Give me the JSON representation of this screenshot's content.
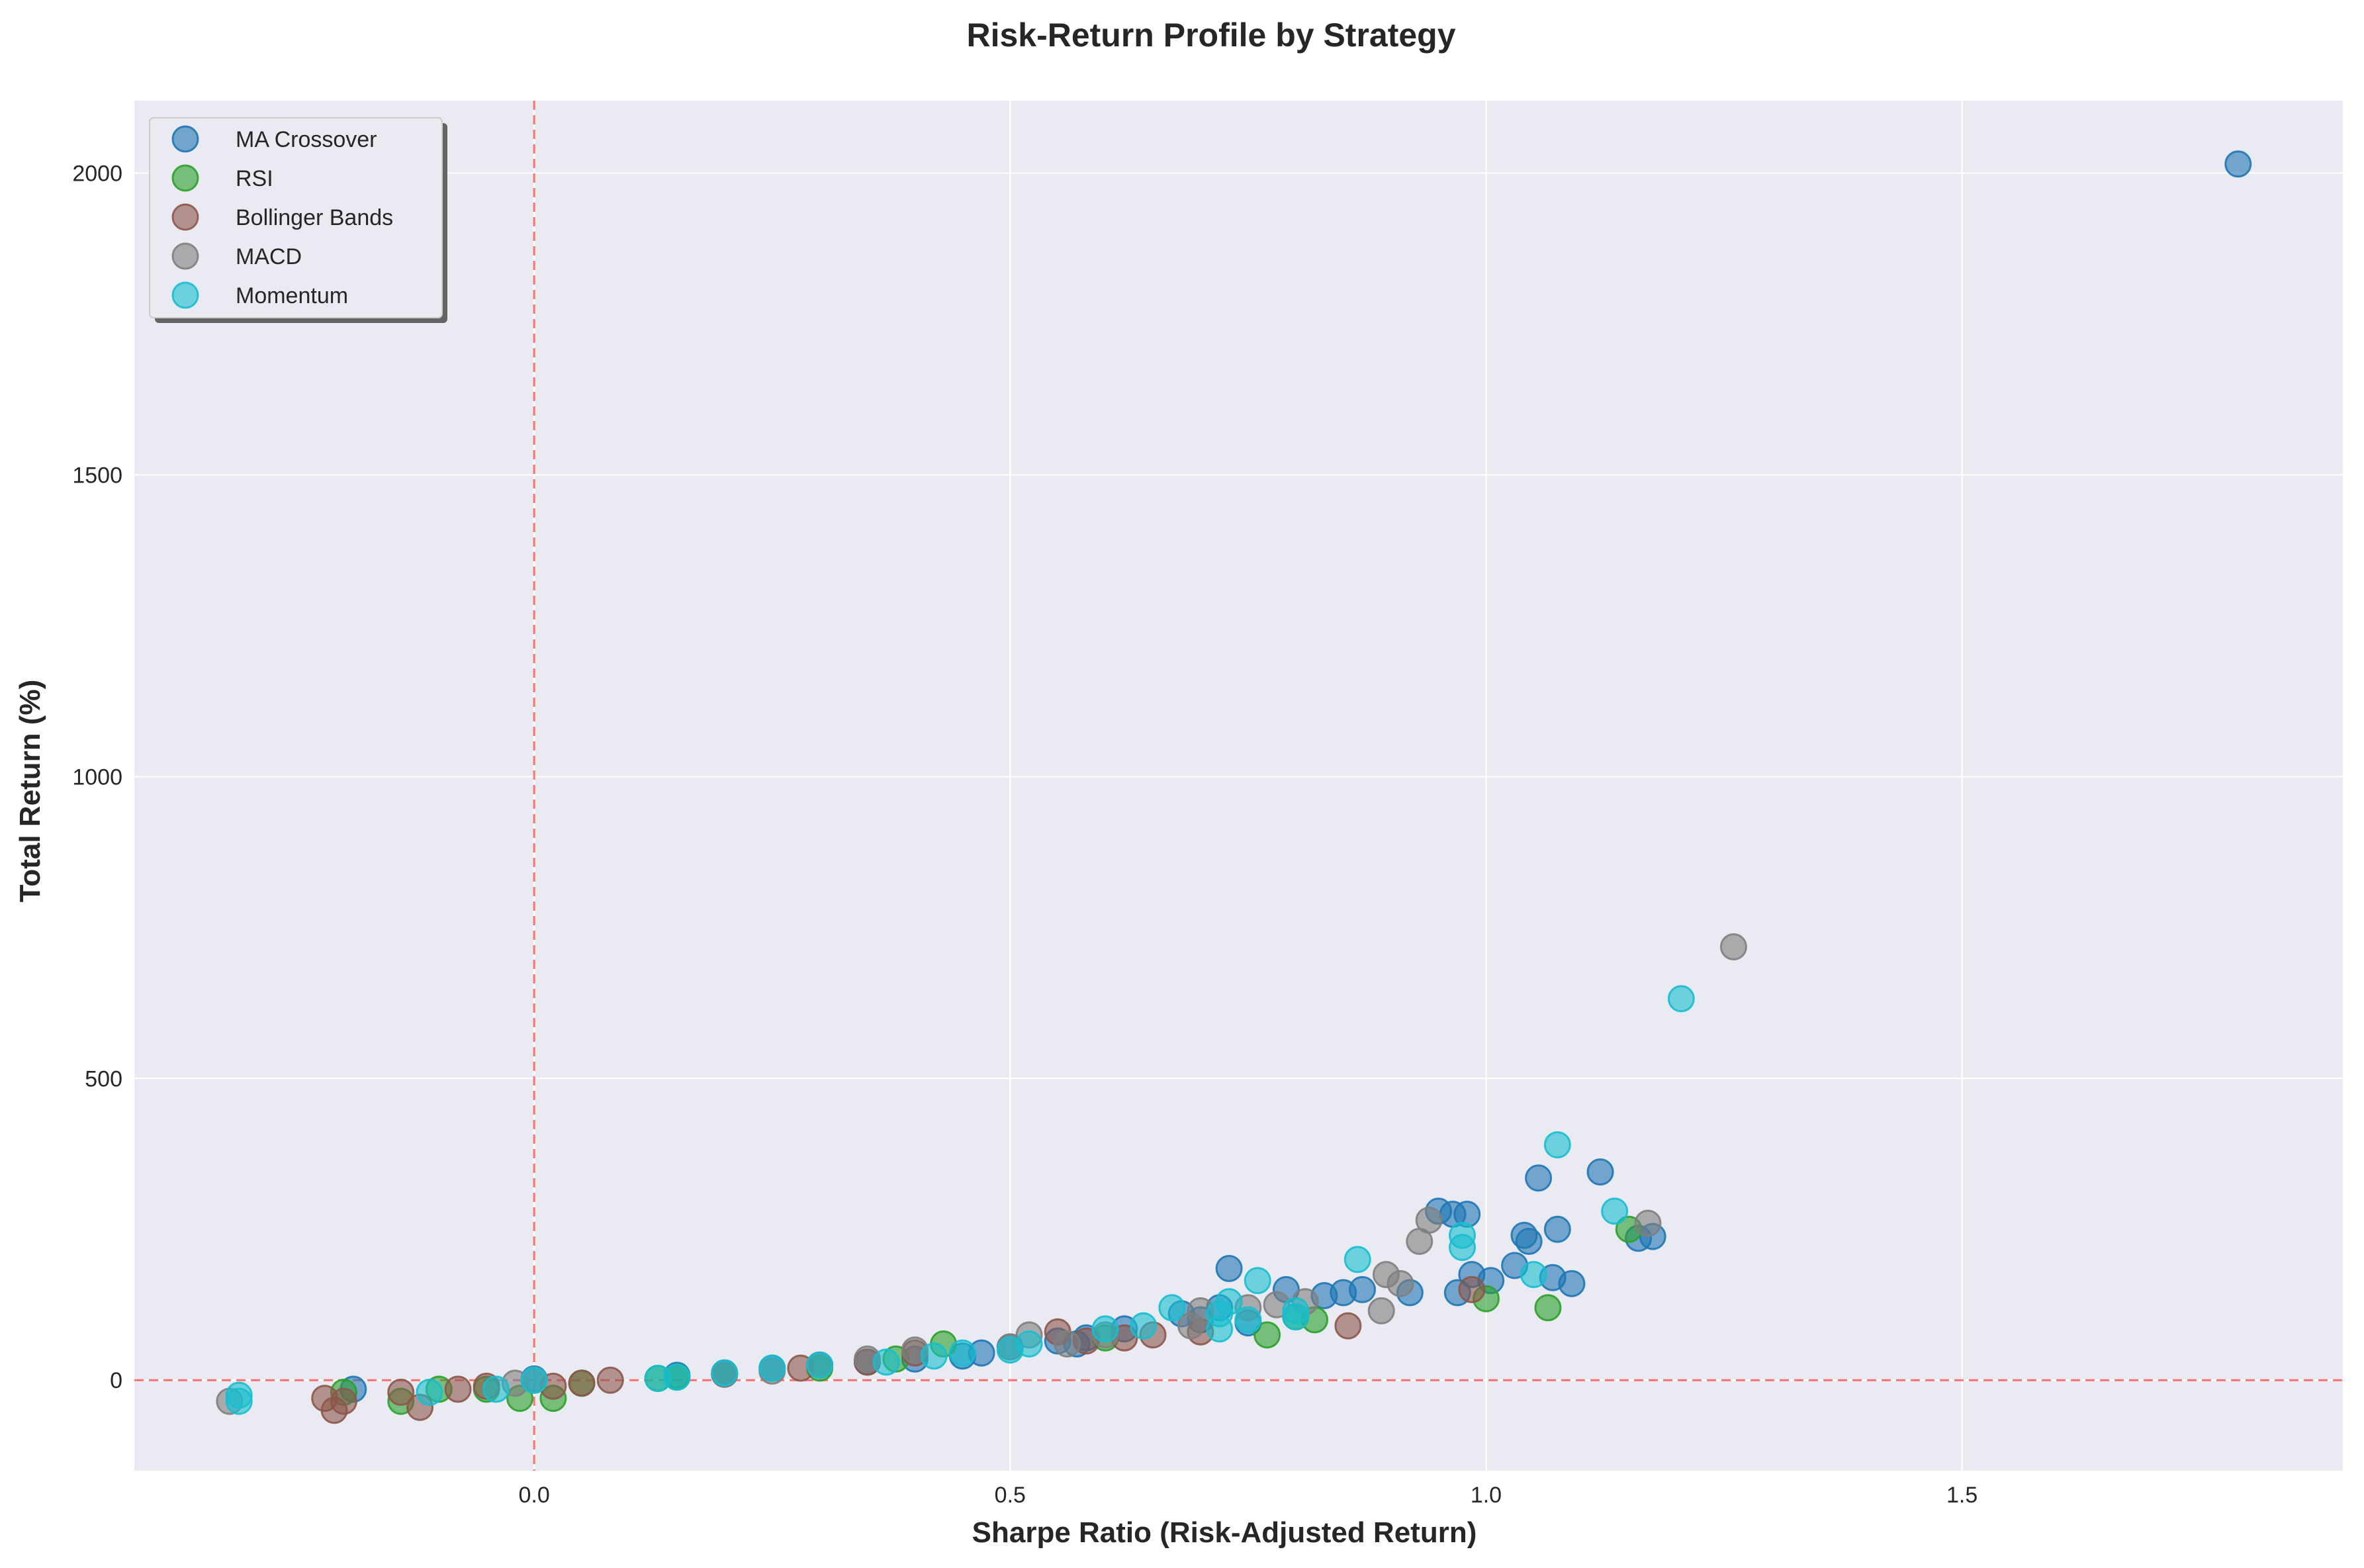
{
  "chart_data": {
    "type": "scatter",
    "title": "Risk-Return Profile by Strategy",
    "xlabel": "Sharpe Ratio (Risk-Adjusted Return)",
    "ylabel": "Total Return (%)",
    "xlim": [
      -0.42,
      1.9
    ],
    "ylim": [
      -150,
      2120
    ],
    "xticks": [
      0.0,
      0.5,
      1.0,
      1.5
    ],
    "xtick_labels": [
      "0.0",
      "0.5",
      "1.0",
      "1.5"
    ],
    "yticks": [
      0,
      500,
      1000,
      1500,
      2000
    ],
    "ytick_labels": [
      "0",
      "500",
      "1000",
      "1500",
      "2000"
    ],
    "grid": true,
    "reference_lines": {
      "x": 0,
      "y": 0,
      "color": "#ff0000",
      "style": "dashed"
    },
    "legend_position": "top-left",
    "series": [
      {
        "name": "MA Crossover",
        "color": "#1f77b4",
        "points": [
          [
            1.79,
            2015
          ],
          [
            1.12,
            345
          ],
          [
            1.055,
            335
          ],
          [
            1.075,
            250
          ],
          [
            1.04,
            240
          ],
          [
            1.045,
            230
          ],
          [
            0.95,
            280
          ],
          [
            0.965,
            275
          ],
          [
            0.98,
            275
          ],
          [
            1.175,
            238
          ],
          [
            1.16,
            235
          ],
          [
            1.03,
            190
          ],
          [
            0.73,
            185
          ],
          [
            1.005,
            165
          ],
          [
            0.985,
            175
          ],
          [
            1.07,
            170
          ],
          [
            1.09,
            160
          ],
          [
            0.79,
            150
          ],
          [
            0.85,
            145
          ],
          [
            0.87,
            150
          ],
          [
            0.92,
            145
          ],
          [
            0.97,
            145
          ],
          [
            0.83,
            140
          ],
          [
            0.72,
            120
          ],
          [
            0.68,
            110
          ],
          [
            0.7,
            100
          ],
          [
            0.75,
            95
          ],
          [
            0.62,
            85
          ],
          [
            0.58,
            70
          ],
          [
            0.57,
            60
          ],
          [
            0.55,
            65
          ],
          [
            0.5,
            55
          ],
          [
            0.47,
            45
          ],
          [
            0.45,
            40
          ],
          [
            0.4,
            35
          ],
          [
            0.35,
            30
          ],
          [
            0.3,
            25
          ],
          [
            0.25,
            20
          ],
          [
            0.2,
            12
          ],
          [
            0.15,
            8
          ],
          [
            0.0,
            2
          ],
          [
            -0.19,
            -15
          ]
        ]
      },
      {
        "name": "RSI",
        "color": "#2ca02c",
        "points": [
          [
            1.15,
            250
          ],
          [
            1.0,
            135
          ],
          [
            1.065,
            120
          ],
          [
            0.77,
            75
          ],
          [
            0.82,
            100
          ],
          [
            0.8,
            105
          ],
          [
            0.6,
            70
          ],
          [
            0.43,
            60
          ],
          [
            0.38,
            35
          ],
          [
            0.3,
            20
          ],
          [
            0.2,
            10
          ],
          [
            0.15,
            5
          ],
          [
            0.13,
            3
          ],
          [
            0.05,
            -5
          ],
          [
            0.02,
            -30
          ],
          [
            -0.015,
            -30
          ],
          [
            -0.05,
            -15
          ],
          [
            -0.1,
            -15
          ],
          [
            -0.14,
            -35
          ],
          [
            -0.2,
            -20
          ]
        ]
      },
      {
        "name": "Bollinger Bands",
        "color": "#8c564b",
        "points": [
          [
            0.985,
            150
          ],
          [
            0.855,
            90
          ],
          [
            0.7,
            80
          ],
          [
            0.65,
            75
          ],
          [
            0.62,
            70
          ],
          [
            0.58,
            65
          ],
          [
            0.55,
            80
          ],
          [
            0.4,
            45
          ],
          [
            0.35,
            30
          ],
          [
            0.28,
            20
          ],
          [
            0.2,
            10
          ],
          [
            0.08,
            0
          ],
          [
            0.05,
            -5
          ],
          [
            0.02,
            -10
          ],
          [
            -0.05,
            -10
          ],
          [
            -0.08,
            -15
          ],
          [
            -0.12,
            -45
          ],
          [
            -0.14,
            -20
          ],
          [
            -0.2,
            -35
          ],
          [
            -0.22,
            -30
          ],
          [
            -0.21,
            -50
          ]
        ]
      },
      {
        "name": "MACD",
        "color": "#7f7f7f",
        "points": [
          [
            1.26,
            718
          ],
          [
            1.17,
            260
          ],
          [
            0.94,
            265
          ],
          [
            0.93,
            230
          ],
          [
            0.895,
            175
          ],
          [
            0.91,
            160
          ],
          [
            0.89,
            115
          ],
          [
            0.81,
            130
          ],
          [
            0.78,
            125
          ],
          [
            0.75,
            120
          ],
          [
            0.7,
            115
          ],
          [
            0.69,
            90
          ],
          [
            0.6,
            75
          ],
          [
            0.56,
            60
          ],
          [
            0.52,
            75
          ],
          [
            0.5,
            55
          ],
          [
            0.4,
            50
          ],
          [
            0.35,
            35
          ],
          [
            0.3,
            25
          ],
          [
            0.25,
            15
          ],
          [
            0.2,
            10
          ],
          [
            0.0,
            0
          ],
          [
            -0.02,
            -5
          ],
          [
            -0.32,
            -35
          ]
        ]
      },
      {
        "name": "Momentum",
        "color": "#17becf",
        "points": [
          [
            1.205,
            632
          ],
          [
            1.075,
            390
          ],
          [
            1.135,
            280
          ],
          [
            0.975,
            240
          ],
          [
            0.975,
            220
          ],
          [
            0.865,
            200
          ],
          [
            1.05,
            175
          ],
          [
            0.76,
            165
          ],
          [
            0.73,
            130
          ],
          [
            0.72,
            110
          ],
          [
            0.8,
            115
          ],
          [
            0.8,
            105
          ],
          [
            0.75,
            100
          ],
          [
            0.72,
            85
          ],
          [
            0.67,
            120
          ],
          [
            0.64,
            90
          ],
          [
            0.6,
            85
          ],
          [
            0.52,
            60
          ],
          [
            0.5,
            50
          ],
          [
            0.45,
            45
          ],
          [
            0.42,
            40
          ],
          [
            0.37,
            30
          ],
          [
            0.3,
            25
          ],
          [
            0.25,
            20
          ],
          [
            0.2,
            12
          ],
          [
            0.15,
            5
          ],
          [
            0.13,
            3
          ],
          [
            0.0,
            0
          ],
          [
            -0.04,
            -15
          ],
          [
            -0.11,
            -20
          ],
          [
            -0.31,
            -25
          ],
          [
            -0.31,
            -35
          ]
        ]
      }
    ]
  }
}
